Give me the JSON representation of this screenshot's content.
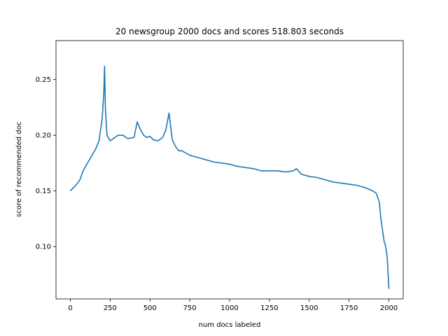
{
  "chart_data": {
    "type": "line",
    "title": "20 newsgroup 2000 docs and scores 518.803 seconds",
    "xlabel": "num docs labeled",
    "ylabel": "score of recommended doc",
    "xlim": [
      -90,
      2090
    ],
    "ylim": [
      0.053,
      0.285
    ],
    "xticks": [
      0,
      250,
      500,
      750,
      1000,
      1250,
      1500,
      1750,
      2000
    ],
    "yticks": [
      0.1,
      0.15,
      0.2,
      0.25
    ],
    "grid": false,
    "series_color": "#1f77b4",
    "series": [
      {
        "x": [
          0,
          20,
          40,
          60,
          80,
          100,
          120,
          140,
          160,
          180,
          190,
          200,
          210,
          215,
          220,
          230,
          250,
          280,
          300,
          330,
          360,
          400,
          420,
          440,
          460,
          480,
          500,
          520,
          550,
          580,
          600,
          620,
          640,
          660,
          680,
          700,
          750,
          800,
          850,
          900,
          950,
          1000,
          1050,
          1100,
          1150,
          1200,
          1250,
          1300,
          1350,
          1400,
          1420,
          1450,
          1500,
          1550,
          1600,
          1650,
          1700,
          1750,
          1800,
          1850,
          1900,
          1920,
          1940,
          1950,
          1960,
          1970,
          1980,
          1990,
          2000
        ],
        "y": [
          0.15,
          0.153,
          0.156,
          0.16,
          0.168,
          0.173,
          0.178,
          0.183,
          0.188,
          0.195,
          0.205,
          0.215,
          0.238,
          0.262,
          0.225,
          0.2,
          0.195,
          0.198,
          0.2,
          0.2,
          0.197,
          0.198,
          0.212,
          0.205,
          0.2,
          0.198,
          0.199,
          0.196,
          0.195,
          0.198,
          0.205,
          0.22,
          0.196,
          0.19,
          0.186,
          0.186,
          0.182,
          0.18,
          0.178,
          0.176,
          0.175,
          0.174,
          0.172,
          0.171,
          0.17,
          0.168,
          0.168,
          0.168,
          0.167,
          0.168,
          0.17,
          0.165,
          0.163,
          0.162,
          0.16,
          0.158,
          0.157,
          0.156,
          0.155,
          0.153,
          0.15,
          0.148,
          0.14,
          0.125,
          0.115,
          0.105,
          0.1,
          0.09,
          0.062
        ]
      }
    ]
  }
}
